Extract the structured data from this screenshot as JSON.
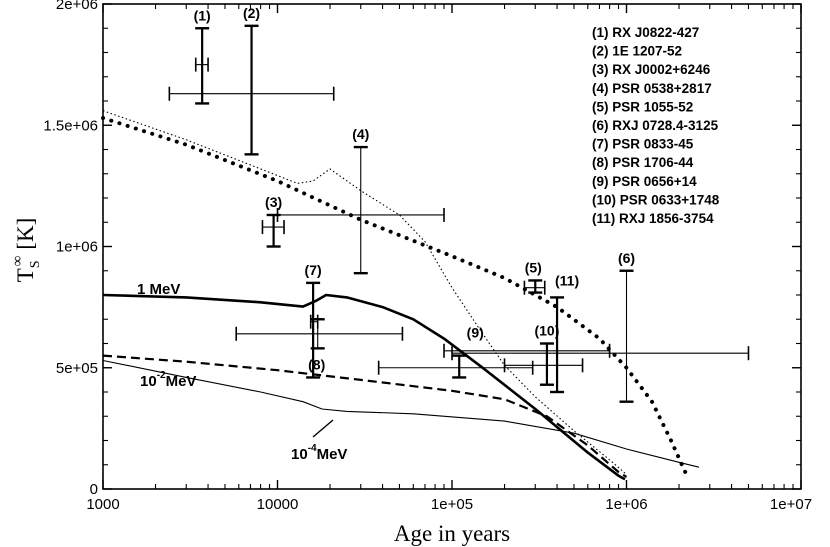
{
  "chart_data": {
    "type": "line",
    "xlabel": "Age in years",
    "ylabel_main": "T",
    "ylabel_sub": "S",
    "ylabel_sup": "∞",
    "ylabel_unit": "[K]",
    "x_log": true,
    "xlim": [
      1000,
      10000000
    ],
    "ylim": [
      0,
      2000000
    ],
    "x_ticks": [
      {
        "value": 1000,
        "label": "1000"
      },
      {
        "value": 10000,
        "label": "10000"
      },
      {
        "value": 100000,
        "label": "1e+05"
      },
      {
        "value": 1000000,
        "label": "1e+06"
      },
      {
        "value": 10000000,
        "label": "1e+07"
      }
    ],
    "y_ticks": [
      {
        "value": 0,
        "label": "0"
      },
      {
        "value": 500000,
        "label": "5e+05"
      },
      {
        "value": 1000000,
        "label": "1e+06"
      },
      {
        "value": 1500000,
        "label": "1.5e+06"
      },
      {
        "value": 2000000,
        "label": "2e+06"
      }
    ],
    "curves": [
      {
        "label": "1 MeV",
        "style": "thick",
        "points": [
          [
            1000,
            800000
          ],
          [
            3000,
            790000
          ],
          [
            8000,
            770000
          ],
          [
            14000,
            752000
          ],
          [
            16500,
            775000
          ],
          [
            19000,
            800000
          ],
          [
            25000,
            790000
          ],
          [
            40000,
            750000
          ],
          [
            60000,
            700000
          ],
          [
            90000,
            620000
          ],
          [
            150000,
            500000
          ],
          [
            300000,
            330000
          ],
          [
            600000,
            150000
          ],
          [
            900000,
            55000
          ],
          [
            980000,
            40000
          ]
        ]
      },
      {
        "label": "10^-2 MeV",
        "style": "dashed",
        "points": [
          [
            1000,
            550000
          ],
          [
            3000,
            525000
          ],
          [
            10000,
            490000
          ],
          [
            30000,
            450000
          ],
          [
            100000,
            405000
          ],
          [
            200000,
            370000
          ],
          [
            350000,
            300000
          ],
          [
            600000,
            180000
          ],
          [
            900000,
            70000
          ],
          [
            1000000,
            50000
          ]
        ]
      },
      {
        "label": "10^-4 MeV",
        "style": "thin",
        "points": [
          [
            1000,
            530000
          ],
          [
            3000,
            460000
          ],
          [
            8000,
            400000
          ],
          [
            14000,
            360000
          ],
          [
            18000,
            330000
          ],
          [
            25000,
            320000
          ],
          [
            60000,
            310000
          ],
          [
            200000,
            280000
          ],
          [
            500000,
            230000
          ],
          [
            1000000,
            165000
          ],
          [
            2000000,
            110000
          ],
          [
            2600000,
            90000
          ]
        ]
      },
      {
        "label": "",
        "style": "dotted",
        "points": [
          [
            1000,
            1560000
          ],
          [
            3000,
            1440000
          ],
          [
            8000,
            1320000
          ],
          [
            13000,
            1260000
          ],
          [
            16000,
            1270000
          ],
          [
            20000,
            1320000
          ],
          [
            30000,
            1230000
          ],
          [
            50000,
            1130000
          ],
          [
            70000,
            1020000
          ],
          [
            100000,
            830000
          ],
          [
            150000,
            640000
          ],
          [
            200000,
            510000
          ],
          [
            300000,
            380000
          ],
          [
            500000,
            240000
          ],
          [
            800000,
            120000
          ],
          [
            1000000,
            60000
          ]
        ]
      },
      {
        "label": "",
        "style": "dots",
        "points": [
          [
            1000,
            1530000
          ],
          [
            3000,
            1420000
          ],
          [
            10000,
            1270000
          ],
          [
            30000,
            1110000
          ],
          [
            100000,
            960000
          ],
          [
            200000,
            870000
          ],
          [
            400000,
            750000
          ],
          [
            700000,
            620000
          ],
          [
            1000000,
            500000
          ],
          [
            1400000,
            360000
          ],
          [
            1800000,
            200000
          ],
          [
            2200000,
            60000
          ]
        ]
      }
    ],
    "data_points": [
      {
        "id": "1",
        "label": "(1)",
        "x": 3700,
        "y": 1750000,
        "xerr": [
          3400,
          4000
        ],
        "yerr": [
          1590000,
          1900000
        ]
      },
      {
        "id": "2",
        "label": "(2)",
        "x": 7100,
        "y": 1630000,
        "xerr": [
          2400,
          21000
        ],
        "yerr": [
          1380000,
          1910000
        ]
      },
      {
        "id": "3",
        "label": "(3)",
        "x": 9500,
        "y": 1080000,
        "xerr": [
          8200,
          10900
        ],
        "yerr": [
          1000000,
          1130000
        ]
      },
      {
        "id": "4",
        "label": "(4)",
        "x": 30000,
        "y": 1130000,
        "xerr": [
          10000,
          90000
        ],
        "yerr": [
          890000,
          1410000
        ]
      },
      {
        "id": "5",
        "label": "(5)",
        "x": 300000,
        "y": 830000,
        "xerr": [
          260000,
          340000
        ],
        "yerr": [
          810000,
          860000
        ]
      },
      {
        "id": "6",
        "label": "(6)",
        "x": 1000000,
        "y": 560000,
        "xerr": [
          100000,
          5000000
        ],
        "yerr": [
          360000,
          900000
        ]
      },
      {
        "id": "7",
        "label": "(7)",
        "x": 16000,
        "y": 690000,
        "xerr": [
          15500,
          17000
        ],
        "yerr": [
          460000,
          850000
        ]
      },
      {
        "id": "8",
        "label": "(8)",
        "x": 17000,
        "y": 640000,
        "xerr": [
          5800,
          52000
        ],
        "yerr": [
          580000,
          700000
        ]
      },
      {
        "id": "9",
        "label": "(9)",
        "x": 110000,
        "y": 500000,
        "xerr": [
          38000,
          290000
        ],
        "yerr": [
          460000,
          550000
        ]
      },
      {
        "id": "10",
        "label": "(10)",
        "x": 350000,
        "y": 510000,
        "xerr": [
          200000,
          560000
        ],
        "yerr": [
          430000,
          600000
        ]
      },
      {
        "id": "11",
        "label": "(11)",
        "x": 400000,
        "y": 570000,
        "xerr": [
          90000,
          800000
        ],
        "yerr": [
          400000,
          790000
        ]
      }
    ],
    "legend": [
      "(1) RX J0822-427",
      "(2) 1E 1207-52",
      "(3) RX J0002+6246",
      "(4) PSR 0538+2817",
      "(5) PSR 1055-52",
      "(6) RXJ 0728.4-3125",
      "(7) PSR 0833-45",
      "(8) PSR 1706-44",
      "(9) PSR 0656+14",
      "(10) PSR 0633+1748",
      "(11) RXJ 1856-3754"
    ],
    "legend_position": "top-right",
    "curve_labels": {
      "mev1": "1 MeV",
      "mev2_base": "10",
      "mev2_exp": "-2",
      "mev2_unit": "MeV",
      "mev4_base": "10",
      "mev4_exp": "-4",
      "mev4_unit": "MeV"
    }
  }
}
